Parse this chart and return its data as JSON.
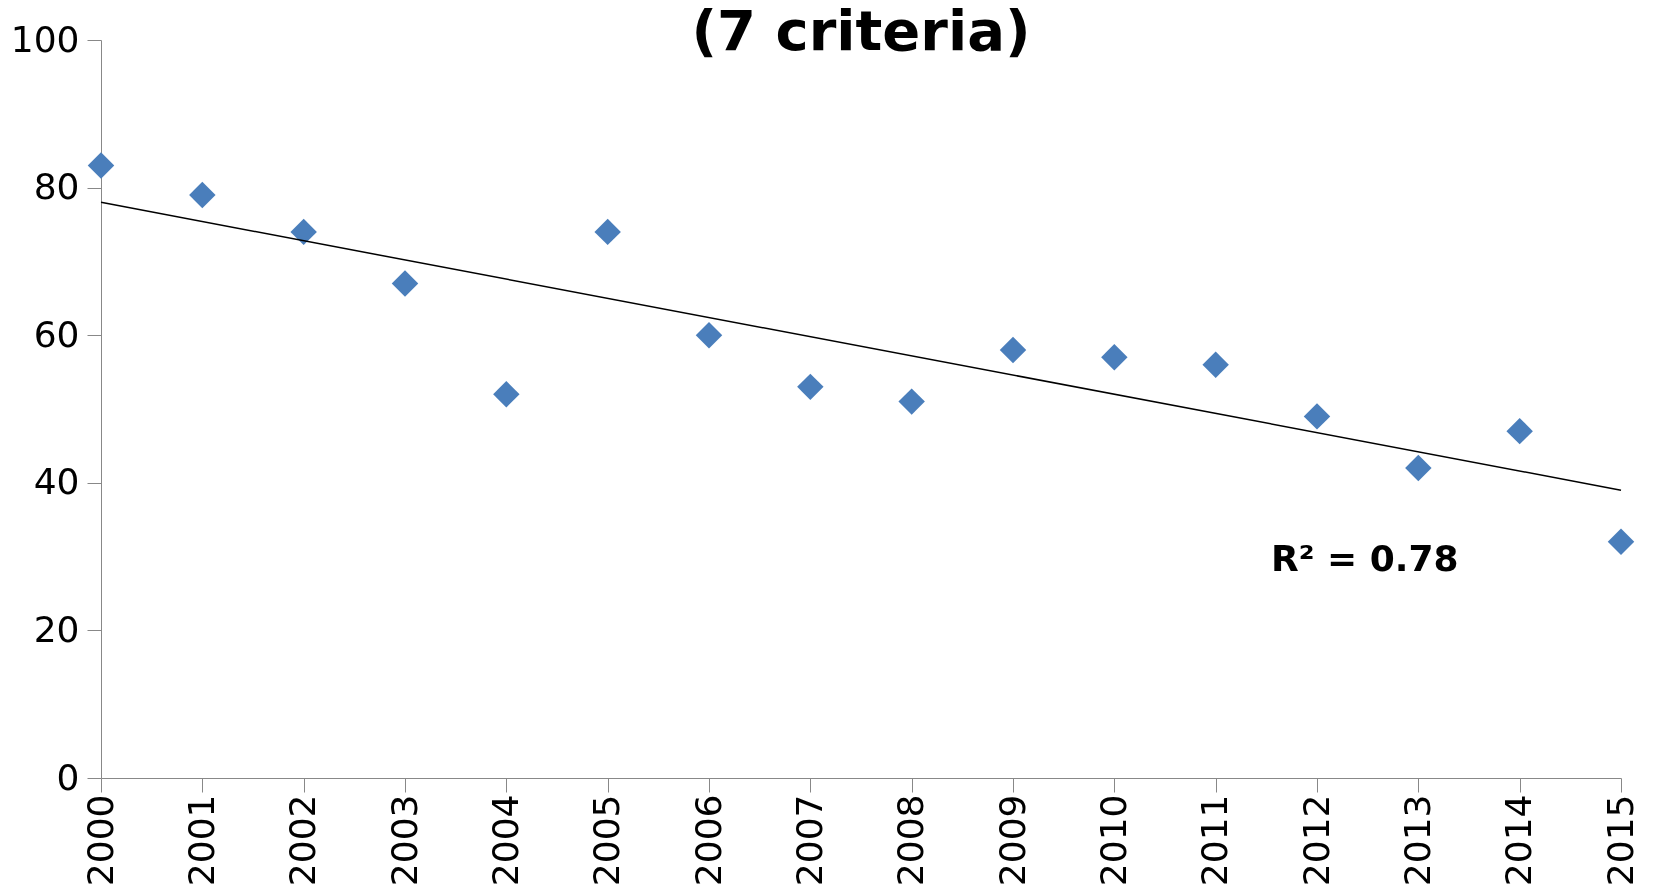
{
  "chart_data": {
    "type": "scatter",
    "title": "(7 criteria)",
    "categories": [
      "2000",
      "2001",
      "2002",
      "2003",
      "2004",
      "2005",
      "2006",
      "2007",
      "2008",
      "2009",
      "2010",
      "2011",
      "2012",
      "2013",
      "2014",
      "2015"
    ],
    "series": [
      {
        "color": "#4a7ebb",
        "values": [
          83,
          79,
          74,
          67,
          52,
          74,
          60,
          53,
          51,
          58,
          57,
          56,
          49,
          42,
          47,
          32
        ]
      },
      {
        "type": "line",
        "color": "#000000",
        "marker": "none",
        "values": [
          78,
          null,
          null,
          null,
          null,
          null,
          null,
          null,
          null,
          null,
          null,
          null,
          null,
          null,
          null,
          39
        ]
      }
    ],
    "ylim": [
      0,
      100
    ],
    "yticks": [
      0,
      20,
      40,
      60,
      80,
      100
    ],
    "grid": false,
    "legend": false,
    "marker": "diamond",
    "line_style": "solid",
    "annotations": [
      "R² = 0.78"
    ]
  }
}
